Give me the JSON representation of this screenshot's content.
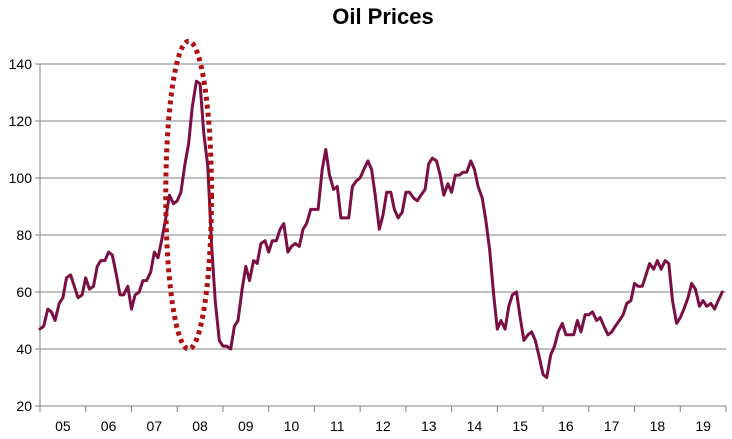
{
  "chart_data": {
    "type": "line",
    "title": "Oil Prices",
    "xlabel": "",
    "ylabel": "",
    "ylim": [
      20,
      140
    ],
    "yticks": [
      20,
      40,
      60,
      80,
      100,
      120,
      140
    ],
    "xlim": [
      2005.0,
      2020.0
    ],
    "categories": [
      "05",
      "06",
      "07",
      "08",
      "09",
      "10",
      "11",
      "12",
      "13",
      "14",
      "15",
      "16",
      "17",
      "18",
      "19"
    ],
    "grid": "horizontal",
    "legend": "none",
    "colors": {
      "series": "#7b0f45",
      "annotation": "#b01010",
      "grid": "#c0c0c0",
      "axis": "#808080"
    },
    "annotation": {
      "shape": "dotted-ellipse",
      "cx": 2008.25,
      "cy": 94,
      "rx": 0.5,
      "ry": 54
    },
    "series": [
      {
        "x": [
          2005.0,
          2005.08,
          2005.17,
          2005.25,
          2005.33,
          2005.42,
          2005.5,
          2005.58,
          2005.67,
          2005.75,
          2005.83,
          2005.92,
          2006.0,
          2006.08,
          2006.17,
          2006.25,
          2006.33,
          2006.42,
          2006.5,
          2006.58,
          2006.67,
          2006.75,
          2006.83,
          2006.92,
          2007.0,
          2007.08,
          2007.17,
          2007.25,
          2007.33,
          2007.42,
          2007.5,
          2007.58,
          2007.67,
          2007.75,
          2007.83,
          2007.92,
          2008.0,
          2008.08,
          2008.17,
          2008.25,
          2008.33,
          2008.42,
          2008.5,
          2008.58,
          2008.67,
          2008.75,
          2008.83,
          2008.92,
          2009.0,
          2009.08,
          2009.17,
          2009.25,
          2009.33,
          2009.42,
          2009.5,
          2009.58,
          2009.67,
          2009.75,
          2009.83,
          2009.92,
          2010.0,
          2010.08,
          2010.17,
          2010.25,
          2010.33,
          2010.42,
          2010.5,
          2010.58,
          2010.67,
          2010.75,
          2010.83,
          2010.92,
          2011.0,
          2011.08,
          2011.17,
          2011.25,
          2011.33,
          2011.42,
          2011.5,
          2011.58,
          2011.67,
          2011.75,
          2011.83,
          2011.92,
          2012.0,
          2012.08,
          2012.17,
          2012.25,
          2012.33,
          2012.42,
          2012.5,
          2012.58,
          2012.67,
          2012.75,
          2012.83,
          2012.92,
          2013.0,
          2013.08,
          2013.17,
          2013.25,
          2013.33,
          2013.42,
          2013.5,
          2013.58,
          2013.67,
          2013.75,
          2013.83,
          2013.92,
          2014.0,
          2014.08,
          2014.17,
          2014.25,
          2014.33,
          2014.42,
          2014.5,
          2014.58,
          2014.67,
          2014.75,
          2014.83,
          2014.92,
          2015.0,
          2015.08,
          2015.17,
          2015.25,
          2015.33,
          2015.42,
          2015.5,
          2015.58,
          2015.67,
          2015.75,
          2015.83,
          2015.92,
          2016.0,
          2016.08,
          2016.17,
          2016.25,
          2016.33,
          2016.42,
          2016.5,
          2016.58,
          2016.67,
          2016.75,
          2016.83,
          2016.92,
          2017.0,
          2017.08,
          2017.17,
          2017.25,
          2017.33,
          2017.42,
          2017.5,
          2017.58,
          2017.67,
          2017.75,
          2017.83,
          2017.92,
          2018.0,
          2018.08,
          2018.17,
          2018.25,
          2018.33,
          2018.42,
          2018.5,
          2018.58,
          2018.67,
          2018.75,
          2018.83,
          2018.92,
          2019.0,
          2019.08,
          2019.17,
          2019.25,
          2019.33,
          2019.42,
          2019.5,
          2019.58,
          2019.67,
          2019.75,
          2019.83,
          2019.92
        ],
        "values": [
          47,
          48,
          54,
          53,
          50,
          56,
          58,
          65,
          66,
          62,
          58,
          59,
          65,
          61,
          62,
          69,
          71,
          71,
          74,
          73,
          66,
          59,
          59,
          62,
          54,
          59,
          60,
          64,
          64,
          67,
          74,
          72,
          79,
          86,
          94,
          91,
          92,
          95,
          105,
          112,
          125,
          134,
          133,
          116,
          104,
          77,
          57,
          43,
          41,
          41,
          40,
          48,
          50,
          61,
          69,
          64,
          71,
          70,
          77,
          78,
          74,
          78,
          78,
          82,
          84,
          74,
          76,
          77,
          76,
          82,
          84,
          89,
          89,
          89,
          103,
          110,
          101,
          96,
          97,
          86,
          86,
          86,
          97,
          99,
          100,
          103,
          106,
          103,
          94,
          82,
          87,
          95,
          95,
          89,
          86,
          88,
          95,
          95,
          93,
          92,
          94,
          96,
          105,
          107,
          106,
          101,
          94,
          98,
          95,
          101,
          101,
          102,
          102,
          106,
          103,
          97,
          93,
          85,
          75,
          59,
          47,
          50,
          47,
          55,
          59,
          60,
          51,
          43,
          45,
          46,
          43,
          37,
          31,
          30,
          38,
          41,
          46,
          49,
          45,
          45,
          45,
          50,
          46,
          52,
          52,
          53,
          50,
          51,
          48,
          45,
          46,
          48,
          50,
          52,
          56,
          57,
          63,
          62,
          62,
          66,
          70,
          68,
          71,
          68,
          71,
          70,
          57,
          49,
          51,
          54,
          58,
          63,
          61,
          55,
          57,
          55,
          56,
          54,
          57,
          60
        ]
      }
    ]
  }
}
